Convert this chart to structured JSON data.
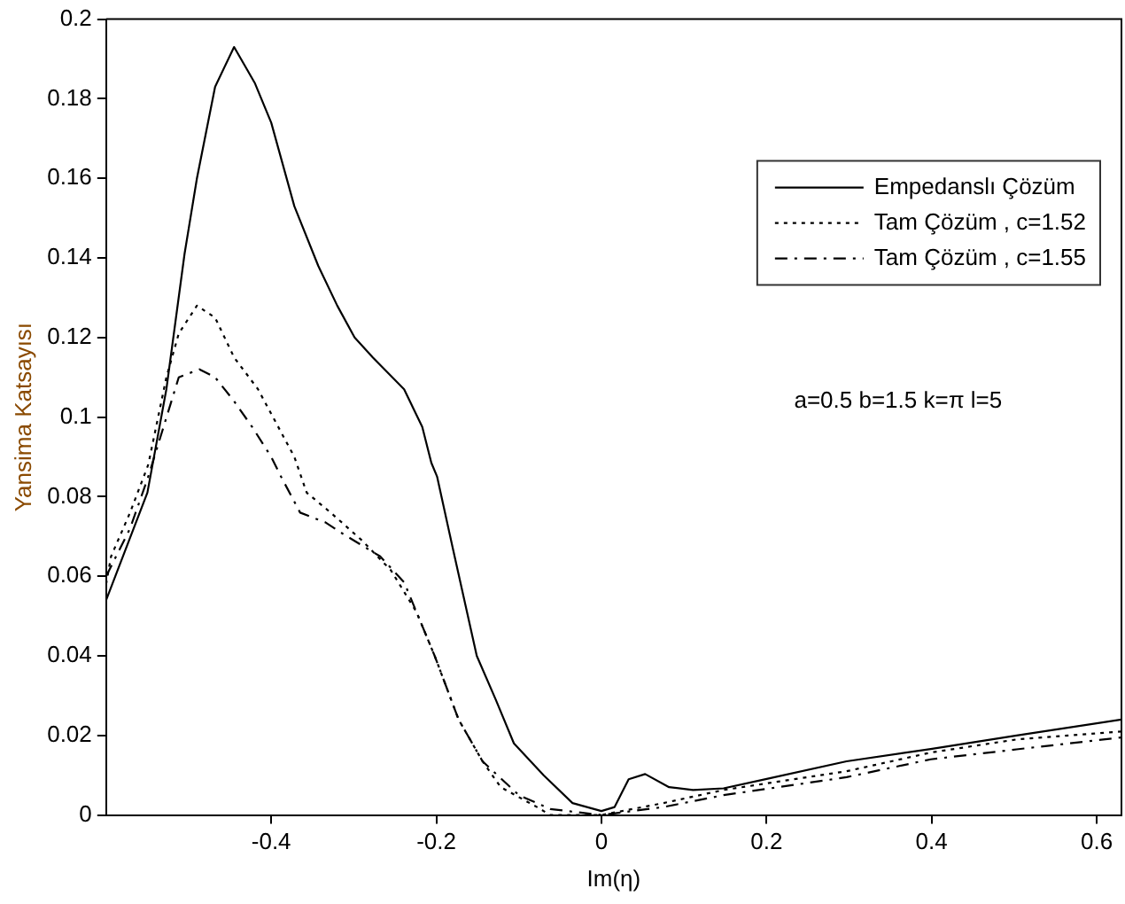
{
  "chart_data": {
    "type": "line",
    "xlabel": "Im(η)",
    "ylabel": "Yansima Katsayısı",
    "annotations": [
      "a=0.5 b=1.5 k=π l=5"
    ],
    "xlim": [
      -0.6,
      0.63
    ],
    "xticks": [
      -0.4,
      -0.2,
      0,
      0.2,
      0.4,
      0.6
    ],
    "ylim": [
      0,
      0.2
    ],
    "yticks": [
      0,
      0.02,
      0.04,
      0.06,
      0.08,
      0.1,
      0.12,
      0.14,
      0.16,
      0.18,
      0.2
    ],
    "grid": false,
    "legend": "top right",
    "marker": "none",
    "series": [
      {
        "name": "Empedanslı Çözüm",
        "color": "#000000",
        "line_style": "solid",
        "x": [
          -0.6,
          -0.55,
          -0.527,
          -0.505,
          -0.49,
          -0.468,
          -0.445,
          -0.42,
          -0.4,
          -0.372,
          -0.343,
          -0.32,
          -0.299,
          -0.277,
          -0.239,
          -0.217,
          -0.206,
          -0.199,
          -0.18,
          -0.151,
          -0.128,
          -0.106,
          -0.07,
          -0.035,
          0,
          0.016,
          0.033,
          0.053,
          0.082,
          0.111,
          0.148,
          0.199,
          0.297,
          0.399,
          0.503,
          0.63
        ],
        "values": [
          0.054,
          0.081,
          0.107,
          0.141,
          0.16,
          0.183,
          0.193,
          0.184,
          0.174,
          0.153,
          0.138,
          0.128,
          0.12,
          0.115,
          0.107,
          0.0975,
          0.0885,
          0.085,
          0.067,
          0.04,
          0.029,
          0.018,
          0.01,
          0.003,
          0.001,
          0.002,
          0.009,
          0.0103,
          0.007,
          0.0063,
          0.0067,
          0.009,
          0.0135,
          0.0166,
          0.02,
          0.024
        ]
      },
      {
        "name": "Tam Çözüm , c=1.52",
        "color": "#000000",
        "line_style": "dotted",
        "x": [
          -0.6,
          -0.594,
          -0.571,
          -0.549,
          -0.527,
          -0.512,
          -0.49,
          -0.468,
          -0.445,
          -0.416,
          -0.372,
          -0.357,
          -0.328,
          -0.29,
          -0.255,
          -0.224,
          -0.202,
          -0.173,
          -0.144,
          -0.122,
          -0.078,
          -0.062,
          0,
          0.075,
          0.148,
          0.297,
          0.399,
          0.503,
          0.63
        ],
        "values": [
          0.058,
          0.065,
          0.076,
          0.088,
          0.11,
          0.121,
          0.128,
          0.125,
          0.115,
          0.107,
          0.09,
          0.081,
          0.076,
          0.069,
          0.0615,
          0.051,
          0.04,
          0.024,
          0.0135,
          0.007,
          0.002,
          0,
          0,
          0.003,
          0.0063,
          0.011,
          0.0157,
          0.019,
          0.021
        ]
      },
      {
        "name": "Tam Çözüm , c=1.55",
        "color": "#000000",
        "line_style": "dashed",
        "x": [
          -0.6,
          -0.571,
          -0.549,
          -0.512,
          -0.487,
          -0.468,
          -0.445,
          -0.423,
          -0.4,
          -0.388,
          -0.365,
          -0.334,
          -0.312,
          -0.268,
          -0.239,
          -0.202,
          -0.173,
          -0.144,
          -0.1,
          -0.062,
          0,
          0.075,
          0.148,
          0.297,
          0.399,
          0.503,
          0.63
        ],
        "values": [
          0.06,
          0.072,
          0.085,
          0.11,
          0.112,
          0.11,
          0.104,
          0.0975,
          0.09,
          0.085,
          0.076,
          0.0735,
          0.0705,
          0.065,
          0.0585,
          0.04,
          0.024,
          0.0135,
          0.005,
          0.0015,
          0,
          0.002,
          0.005,
          0.0095,
          0.014,
          0.0165,
          0.0195
        ]
      }
    ]
  }
}
